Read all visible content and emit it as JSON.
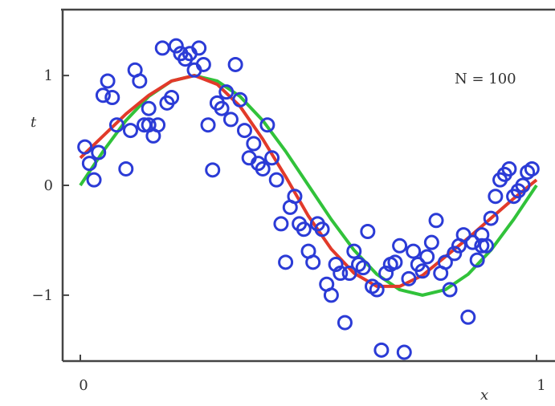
{
  "chart_data": {
    "type": "scatter",
    "xlabel": "x",
    "ylabel": "t",
    "xlim": [
      0,
      1
    ],
    "ylim": [
      -1.6,
      1.6
    ],
    "x_ticks": [
      0,
      1
    ],
    "x_tick_labels": [
      "0",
      "1"
    ],
    "y_ticks": [
      -1,
      0,
      1
    ],
    "y_tick_labels": [
      "−1",
      "0",
      "1"
    ],
    "annotation": "N = 100",
    "grid": false,
    "colors": {
      "points": "#2b3bd6",
      "fit_curve": "#e23a2a",
      "true_curve": "#31c23a",
      "axis": "#444444"
    },
    "series": [
      {
        "kind": "points",
        "x": [
          0.01,
          0.02,
          0.03,
          0.04,
          0.05,
          0.06,
          0.07,
          0.08,
          0.1,
          0.11,
          0.12,
          0.13,
          0.14,
          0.15,
          0.16,
          0.17,
          0.18,
          0.19,
          0.2,
          0.21,
          0.22,
          0.23,
          0.24,
          0.25,
          0.26,
          0.27,
          0.28,
          0.29,
          0.3,
          0.31,
          0.32,
          0.33,
          0.34,
          0.35,
          0.36,
          0.37,
          0.38,
          0.39,
          0.4,
          0.41,
          0.42,
          0.43,
          0.44,
          0.45,
          0.46,
          0.47,
          0.48,
          0.49,
          0.5,
          0.51,
          0.52,
          0.53,
          0.54,
          0.55,
          0.56,
          0.57,
          0.58,
          0.59,
          0.6,
          0.61,
          0.62,
          0.63,
          0.64,
          0.65,
          0.66,
          0.67,
          0.68,
          0.69,
          0.7,
          0.71,
          0.72,
          0.73,
          0.74,
          0.75,
          0.76,
          0.77,
          0.78,
          0.79,
          0.8,
          0.81,
          0.82,
          0.83,
          0.84,
          0.85,
          0.86,
          0.87,
          0.88,
          0.89,
          0.9,
          0.91,
          0.92,
          0.93,
          0.94,
          0.95,
          0.96,
          0.97,
          0.98,
          0.99,
          0.15,
          0.88
        ],
        "y": [
          0.35,
          0.2,
          0.05,
          0.3,
          0.82,
          0.95,
          0.8,
          0.55,
          0.15,
          0.5,
          1.05,
          0.95,
          0.55,
          0.7,
          0.45,
          0.55,
          1.25,
          0.75,
          0.8,
          1.27,
          1.2,
          1.15,
          1.2,
          1.05,
          1.25,
          1.1,
          0.55,
          0.14,
          0.75,
          0.7,
          0.85,
          0.6,
          1.1,
          0.78,
          0.5,
          0.25,
          0.38,
          0.2,
          0.15,
          0.55,
          0.25,
          0.05,
          -0.35,
          -0.7,
          -0.2,
          -0.1,
          -0.35,
          -0.4,
          -0.6,
          -0.7,
          -0.35,
          -0.4,
          -0.9,
          -1.0,
          -0.72,
          -0.8,
          -1.25,
          -0.8,
          -0.6,
          -0.72,
          -0.75,
          -0.42,
          -0.92,
          -0.95,
          -1.5,
          -0.8,
          -0.72,
          -0.7,
          -0.55,
          -1.52,
          -0.85,
          -0.6,
          -0.72,
          -0.78,
          -0.65,
          -0.52,
          -0.32,
          -0.8,
          -0.7,
          -0.95,
          -0.62,
          -0.55,
          -0.45,
          -1.2,
          -0.52,
          -0.68,
          -0.45,
          -0.55,
          -0.3,
          -0.1,
          0.05,
          0.1,
          0.15,
          -0.1,
          -0.05,
          0.0,
          0.12,
          0.15,
          0.55,
          -0.55
        ]
      },
      {
        "kind": "fit_curve",
        "x": [
          0,
          0.05,
          0.1,
          0.15,
          0.2,
          0.25,
          0.3,
          0.35,
          0.4,
          0.45,
          0.5,
          0.55,
          0.6,
          0.65,
          0.7,
          0.75,
          0.8,
          0.85,
          0.9,
          0.95,
          1.0
        ],
        "y": [
          0.25,
          0.45,
          0.65,
          0.82,
          0.95,
          1.0,
          0.92,
          0.72,
          0.42,
          0.08,
          -0.28,
          -0.58,
          -0.8,
          -0.92,
          -0.92,
          -0.82,
          -0.65,
          -0.48,
          -0.3,
          -0.12,
          0.05
        ]
      },
      {
        "kind": "true_curve",
        "x": [
          0,
          0.05,
          0.1,
          0.15,
          0.2,
          0.25,
          0.3,
          0.35,
          0.4,
          0.45,
          0.5,
          0.55,
          0.6,
          0.65,
          0.7,
          0.75,
          0.8,
          0.85,
          0.9,
          0.95,
          1.0
        ],
        "y": [
          0.0,
          0.31,
          0.59,
          0.81,
          0.95,
          1.0,
          0.95,
          0.81,
          0.59,
          0.31,
          0.0,
          -0.31,
          -0.59,
          -0.81,
          -0.95,
          -1.0,
          -0.95,
          -0.81,
          -0.59,
          -0.31,
          0.0
        ]
      }
    ]
  }
}
